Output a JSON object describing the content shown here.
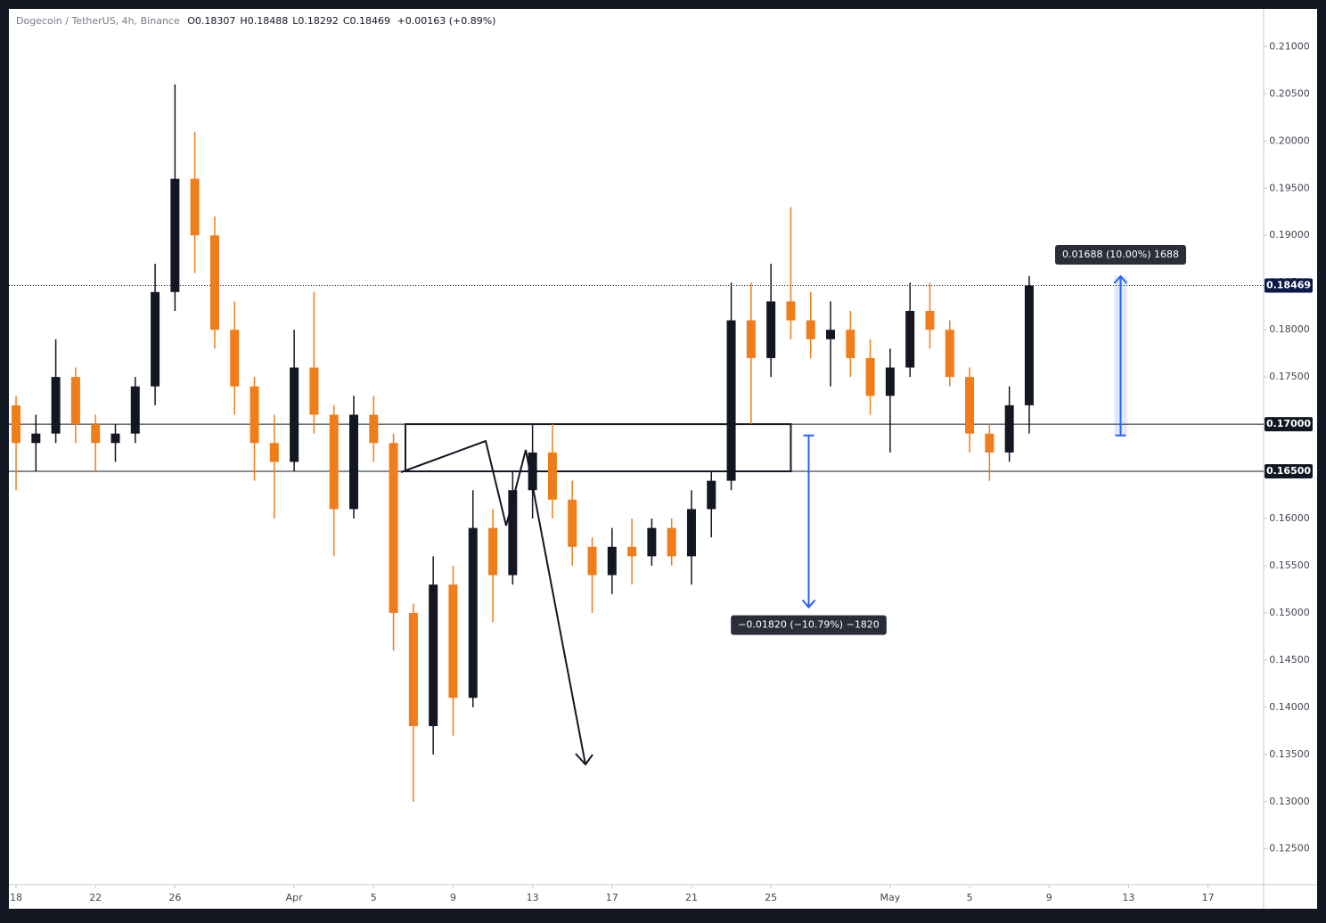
{
  "chart_data": {
    "type": "candlestick",
    "header": {
      "symbol": "Dogecoin / TetherUS, 4h, Binance",
      "ohlc": [
        {
          "key": "O",
          "value": "0.18307"
        },
        {
          "key": "H",
          "value": "0.18488"
        },
        {
          "key": "L",
          "value": "0.18292"
        },
        {
          "key": "C",
          "value": "0.18469"
        }
      ],
      "change": "+0.00163 (+0.89%)"
    },
    "up_color": "#131722",
    "down_color": "#ef7d1a",
    "x": [
      0,
      1,
      2,
      3,
      4,
      5,
      6,
      7,
      8,
      9,
      10,
      11,
      12,
      13,
      14,
      15,
      16,
      17,
      18,
      19,
      20,
      21,
      22,
      23,
      24,
      25,
      26,
      27,
      28,
      29,
      30,
      31,
      32,
      33,
      34,
      35,
      36,
      37,
      38,
      39,
      40,
      41,
      42,
      43,
      44,
      45,
      46,
      47,
      48,
      49,
      50,
      51
    ],
    "open": [
      0.172,
      0.168,
      0.169,
      0.175,
      0.17,
      0.168,
      0.169,
      0.174,
      0.184,
      0.196,
      0.19,
      0.18,
      0.174,
      0.168,
      0.166,
      0.176,
      0.171,
      0.161,
      0.171,
      0.168,
      0.15,
      0.138,
      0.153,
      0.141,
      0.159,
      0.154,
      0.163,
      0.167,
      0.162,
      0.157,
      0.154,
      0.157,
      0.156,
      0.159,
      0.156,
      0.161,
      0.164,
      0.181,
      0.177,
      0.183,
      0.181,
      0.179,
      0.18,
      0.177,
      0.173,
      0.176,
      0.182,
      0.18,
      0.175,
      0.169,
      0.167,
      0.172
    ],
    "high": [
      0.173,
      0.171,
      0.179,
      0.176,
      0.171,
      0.17,
      0.175,
      0.187,
      0.206,
      0.201,
      0.192,
      0.183,
      0.175,
      0.171,
      0.18,
      0.184,
      0.172,
      0.173,
      0.173,
      0.169,
      0.151,
      0.156,
      0.155,
      0.163,
      0.161,
      0.165,
      0.17,
      0.17,
      0.164,
      0.158,
      0.159,
      0.16,
      0.16,
      0.16,
      0.163,
      0.165,
      0.185,
      0.185,
      0.187,
      0.193,
      0.184,
      0.183,
      0.182,
      0.179,
      0.178,
      0.185,
      0.185,
      0.181,
      0.176,
      0.17,
      0.174,
      0.1857
    ],
    "low": [
      0.163,
      0.165,
      0.168,
      0.168,
      0.165,
      0.166,
      0.168,
      0.172,
      0.182,
      0.186,
      0.178,
      0.171,
      0.164,
      0.16,
      0.165,
      0.169,
      0.156,
      0.16,
      0.166,
      0.146,
      0.13,
      0.135,
      0.137,
      0.14,
      0.149,
      0.153,
      0.16,
      0.16,
      0.155,
      0.15,
      0.152,
      0.153,
      0.155,
      0.155,
      0.153,
      0.158,
      0.163,
      0.17,
      0.175,
      0.179,
      0.177,
      0.174,
      0.175,
      0.171,
      0.167,
      0.175,
      0.178,
      0.174,
      0.167,
      0.164,
      0.166,
      0.169
    ],
    "close": [
      0.168,
      0.169,
      0.175,
      0.17,
      0.168,
      0.169,
      0.174,
      0.184,
      0.196,
      0.19,
      0.18,
      0.174,
      0.168,
      0.166,
      0.176,
      0.171,
      0.161,
      0.171,
      0.168,
      0.15,
      0.138,
      0.153,
      0.141,
      0.159,
      0.154,
      0.163,
      0.167,
      0.162,
      0.157,
      0.154,
      0.157,
      0.156,
      0.159,
      0.156,
      0.161,
      0.164,
      0.181,
      0.177,
      0.183,
      0.181,
      0.179,
      0.18,
      0.177,
      0.173,
      0.176,
      0.182,
      0.18,
      0.175,
      0.169,
      0.167,
      0.172,
      0.18469
    ],
    "xlim": [
      -0.36,
      62.8
    ],
    "ylim": [
      0.1212,
      0.214
    ],
    "xticks": [
      {
        "value": 0,
        "label": "18"
      },
      {
        "value": 4,
        "label": "22"
      },
      {
        "value": 8,
        "label": "26"
      },
      {
        "value": 14,
        "label": "Apr"
      },
      {
        "value": 18,
        "label": "5"
      },
      {
        "value": 22,
        "label": "9"
      },
      {
        "value": 26,
        "label": "13"
      },
      {
        "value": 30,
        "label": "17"
      },
      {
        "value": 34,
        "label": "21"
      },
      {
        "value": 38,
        "label": "25"
      },
      {
        "value": 44,
        "label": "May"
      },
      {
        "value": 48,
        "label": "5"
      },
      {
        "value": 52,
        "label": "9"
      },
      {
        "value": 56,
        "label": "13"
      },
      {
        "value": 60,
        "label": "17"
      }
    ],
    "yticks": [
      {
        "value": 0.125,
        "label": "0.12500"
      },
      {
        "value": 0.13,
        "label": "0.13000"
      },
      {
        "value": 0.135,
        "label": "0.13500"
      },
      {
        "value": 0.14,
        "label": "0.14000"
      },
      {
        "value": 0.145,
        "label": "0.14500"
      },
      {
        "value": 0.15,
        "label": "0.15000"
      },
      {
        "value": 0.155,
        "label": "0.15500"
      },
      {
        "value": 0.16,
        "label": "0.16000"
      },
      {
        "value": 0.165,
        "label": "0.16500"
      },
      {
        "value": 0.17,
        "label": "0.17000"
      },
      {
        "value": 0.175,
        "label": "0.17500"
      },
      {
        "value": 0.18,
        "label": "0.18000"
      },
      {
        "value": 0.185,
        "label": "0.18500"
      },
      {
        "value": 0.19,
        "label": "0.19000"
      },
      {
        "value": 0.195,
        "label": "0.19500"
      },
      {
        "value": 0.2,
        "label": "0.20000"
      },
      {
        "value": 0.205,
        "label": "0.20500"
      },
      {
        "value": 0.21,
        "label": "0.21000"
      }
    ],
    "levels": [
      {
        "value": 0.17,
        "label": "0.17000"
      },
      {
        "value": 0.165,
        "label": "0.16500"
      }
    ],
    "last_price": {
      "value": 0.18469,
      "label": "0.18469"
    },
    "zone": {
      "x": [
        19.6,
        39.0
      ],
      "y": [
        0.165,
        0.17
      ]
    },
    "measures": [
      {
        "x": 55.6,
        "from": 0.1688,
        "to": 0.18568,
        "label": "0.01688 (10.00%) 1688"
      },
      {
        "x": 39.9,
        "from": 0.1688,
        "to": 0.1506,
        "label": "−0.01820 (−10.79%) −1820"
      }
    ]
  }
}
